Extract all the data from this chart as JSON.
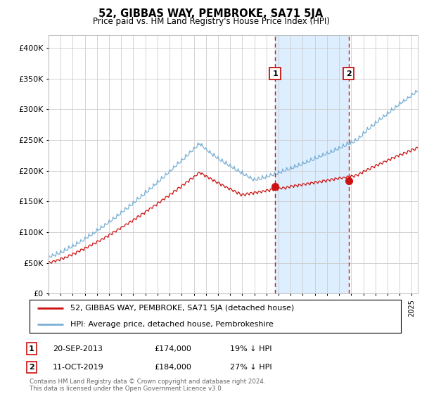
{
  "title": "52, GIBBAS WAY, PEMBROKE, SA71 5JA",
  "subtitle": "Price paid vs. HM Land Registry's House Price Index (HPI)",
  "ylabel_ticks": [
    "£0",
    "£50K",
    "£100K",
    "£150K",
    "£200K",
    "£250K",
    "£300K",
    "£350K",
    "£400K"
  ],
  "ylim": [
    0,
    420000
  ],
  "xlim_start": 1995.0,
  "xlim_end": 2025.5,
  "hpi_color": "#7ab0d4",
  "price_color": "#cc1111",
  "grid_color": "#cccccc",
  "background_color": "#ffffff",
  "shade_color": "#ddeeff",
  "sale1_date": "20-SEP-2013",
  "sale1_price": "£174,000",
  "sale1_pct": "19% ↓ HPI",
  "sale1_year": 2013.72,
  "sale1_value": 174000,
  "sale2_date": "11-OCT-2019",
  "sale2_price": "£184,000",
  "sale2_pct": "27% ↓ HPI",
  "sale2_year": 2019.78,
  "sale2_value": 184000,
  "legend_line1": "52, GIBBAS WAY, PEMBROKE, SA71 5JA (detached house)",
  "legend_line2": "HPI: Average price, detached house, Pembrokeshire",
  "footer": "Contains HM Land Registry data © Crown copyright and database right 2024.\nThis data is licensed under the Open Government Licence v3.0."
}
